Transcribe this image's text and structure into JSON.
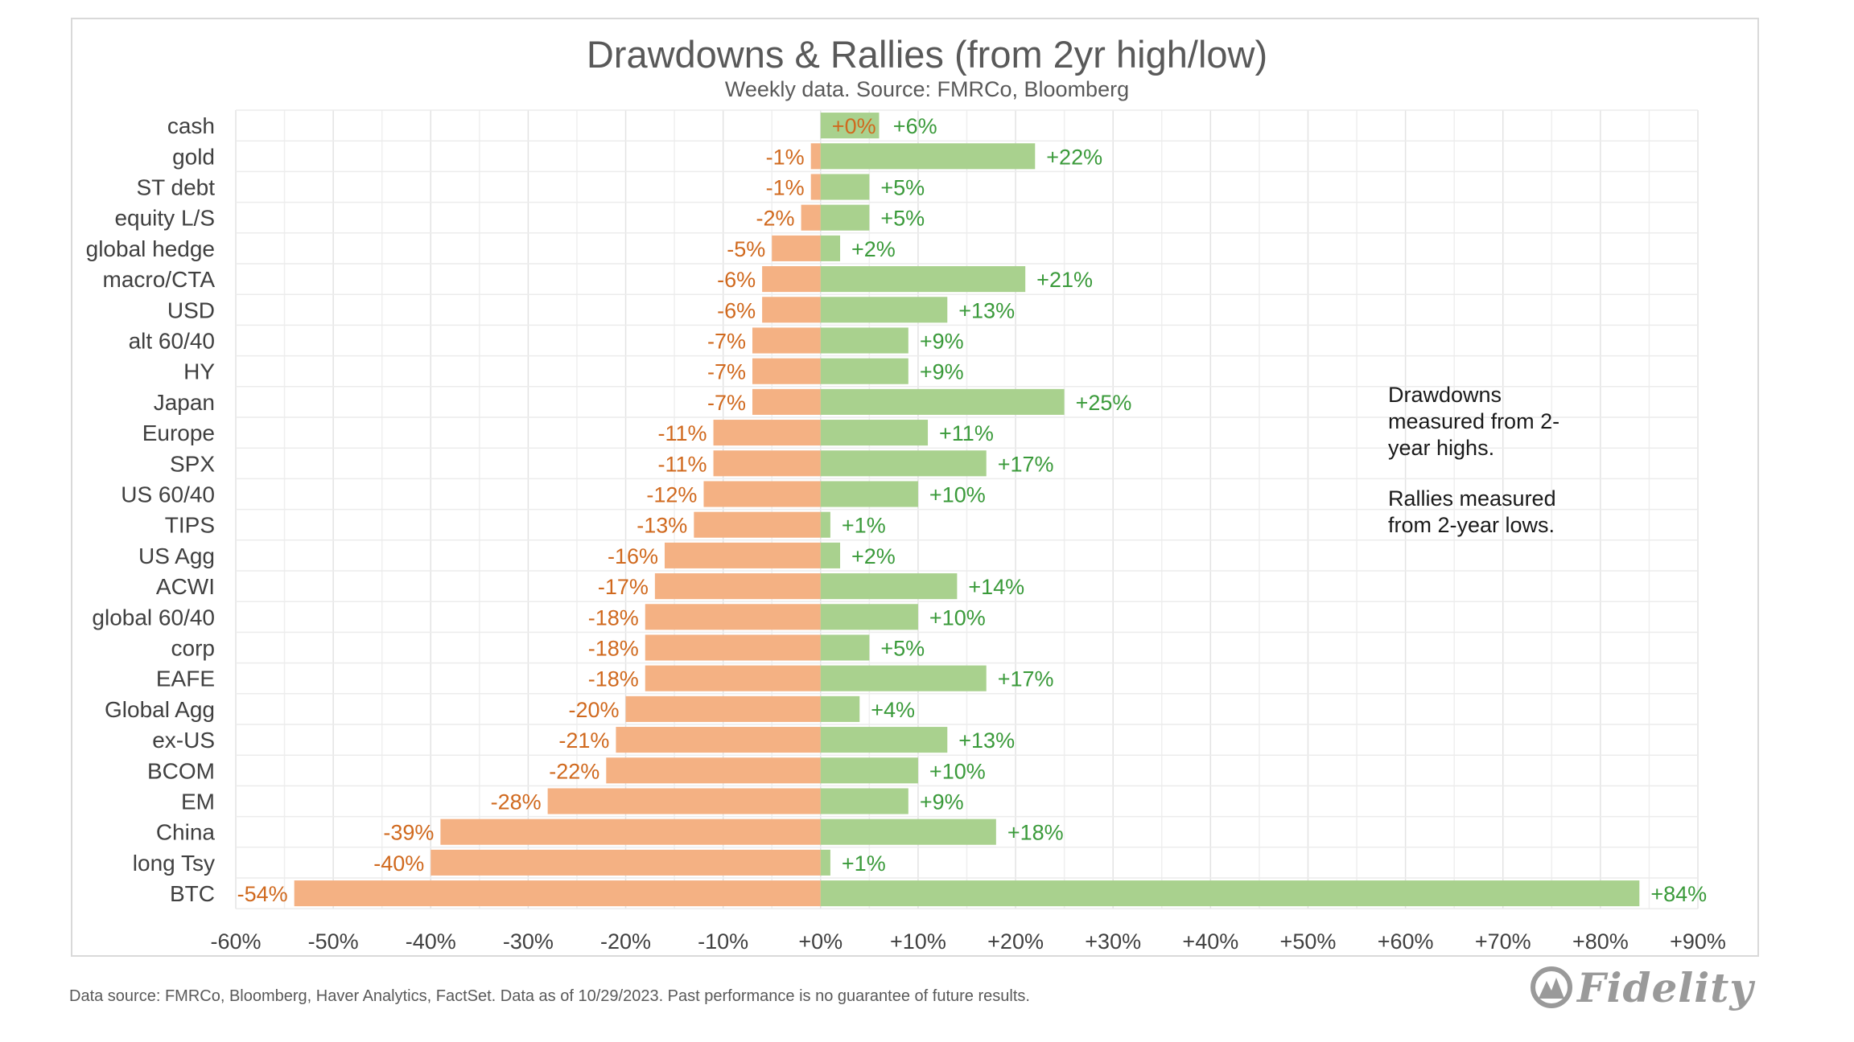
{
  "footer": {
    "source": "Data source: FMRCo, Bloomberg, Haver Analytics, FactSet. Data as of 10/29/2023. Past performance is no guarantee of future results.",
    "logo": "Fidelity"
  },
  "chart_data": {
    "type": "bar",
    "orientation": "horizontal",
    "title": "Drawdowns & Rallies (from 2yr high/low)",
    "subtitle": "Weekly data.  Source: FMRCo, Bloomberg",
    "annotations": [
      "Drawdowns measured from 2-year highs.",
      "Rallies measured from 2-year lows."
    ],
    "categories": [
      "cash",
      "gold",
      "ST debt",
      "equity L/S",
      "global hedge",
      "macro/CTA",
      "USD",
      "alt 60/40",
      "HY",
      "Japan",
      "Europe",
      "SPX",
      "US 60/40",
      "TIPS",
      "US Agg",
      "ACWI",
      "global 60/40",
      "corp",
      "EAFE",
      "Global Agg",
      "ex-US",
      "BCOM",
      "EM",
      "China",
      "long Tsy",
      "BTC"
    ],
    "series": [
      {
        "values": [
          0,
          -1,
          -1,
          -2,
          -5,
          -6,
          -6,
          -7,
          -7,
          -7,
          -11,
          -11,
          -12,
          -13,
          -16,
          -17,
          -18,
          -18,
          -18,
          -20,
          -21,
          -22,
          -28,
          -39,
          -40,
          -54
        ],
        "labels": [
          "+0%",
          "-1%",
          "-1%",
          "-2%",
          "-5%",
          "-6%",
          "-6%",
          "-7%",
          "-7%",
          "-7%",
          "-11%",
          "-11%",
          "-12%",
          "-13%",
          "-16%",
          "-17%",
          "-18%",
          "-18%",
          "-18%",
          "-20%",
          "-21%",
          "-22%",
          "-28%",
          "-39%",
          "-40%",
          "-54%"
        ],
        "color": "#f4b183"
      },
      {
        "values": [
          6,
          22,
          5,
          5,
          2,
          21,
          13,
          9,
          9,
          25,
          11,
          17,
          10,
          1,
          2,
          14,
          10,
          5,
          17,
          4,
          13,
          10,
          9,
          18,
          1,
          84
        ],
        "labels": [
          "+6%",
          "+22%",
          "+5%",
          "+5%",
          "+2%",
          "+21%",
          "+13%",
          "+9%",
          "+9%",
          "+25%",
          "+11%",
          "+17%",
          "+10%",
          "+1%",
          "+2%",
          "+14%",
          "+10%",
          "+5%",
          "+17%",
          "+4%",
          "+13%",
          "+10%",
          "+9%",
          "+18%",
          "+1%",
          "+84%"
        ],
        "color": "#a9d18e"
      }
    ],
    "xlim": [
      -60,
      90
    ],
    "xticks": [
      "-60%",
      "-50%",
      "-40%",
      "-30%",
      "-20%",
      "-10%",
      "+0%",
      "+10%",
      "+20%",
      "+30%",
      "+40%",
      "+50%",
      "+60%",
      "+70%",
      "+80%",
      "+90%"
    ],
    "grid": true
  }
}
